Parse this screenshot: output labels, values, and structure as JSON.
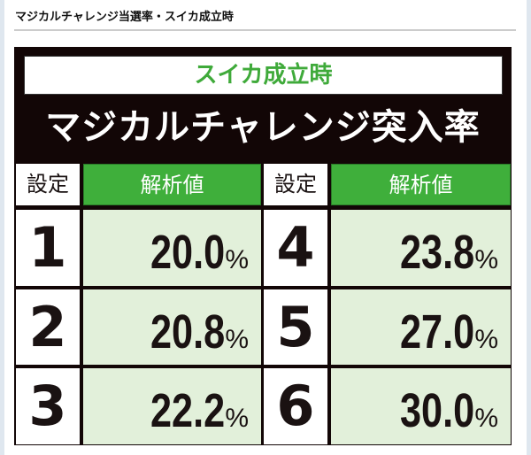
{
  "page_title": "マジカルチャレンジ当選率・スイカ成立時",
  "image": {
    "subtitle": "スイカ成立時",
    "heading": "マジカルチャレンジ突入率",
    "headers": {
      "setting": "設定",
      "value": "解析値"
    },
    "rows": [
      {
        "setting": "1",
        "value": "20.0",
        "unit": "%"
      },
      {
        "setting": "2",
        "value": "20.8",
        "unit": "%"
      },
      {
        "setting": "3",
        "value": "22.2",
        "unit": "%"
      },
      {
        "setting": "4",
        "value": "23.8",
        "unit": "%"
      },
      {
        "setting": "5",
        "value": "27.0",
        "unit": "%"
      },
      {
        "setting": "6",
        "value": "30.0",
        "unit": "%"
      }
    ]
  },
  "colors": {
    "accent_green": "#3faf3b",
    "value_bg": "#e2f0da",
    "frame": "#120606"
  }
}
